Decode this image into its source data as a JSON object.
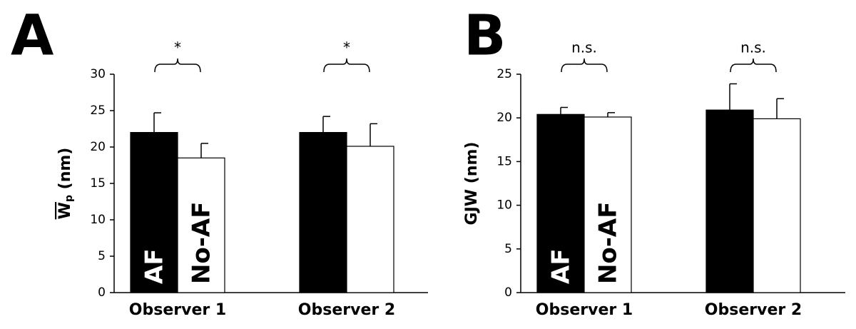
{
  "chart_data": [
    {
      "type": "bar",
      "panel": "A",
      "ylabel": [
        "W",
        "p",
        " (nm)"
      ],
      "categories": [
        "Observer 1",
        "Observer 2"
      ],
      "series": [
        {
          "name": "AF",
          "color": "#000000",
          "values": [
            22,
            22
          ],
          "errors": [
            2.7,
            2.2
          ]
        },
        {
          "name": "No-AF",
          "color": "#ffffff",
          "values": [
            18.5,
            20.1
          ],
          "errors": [
            2.0,
            3.1
          ]
        }
      ],
      "annotations": [
        "*",
        "*"
      ],
      "ylim": [
        0,
        30
      ],
      "yticks": [
        0,
        5,
        10,
        15,
        20,
        25,
        30
      ]
    },
    {
      "type": "bar",
      "panel": "B",
      "ylabel": [
        "GJW (nm)"
      ],
      "categories": [
        "Observer 1",
        "Observer 2"
      ],
      "series": [
        {
          "name": "AF",
          "color": "#000000",
          "values": [
            20.4,
            20.9
          ],
          "errors": [
            0.8,
            3.0
          ]
        },
        {
          "name": "No-AF",
          "color": "#ffffff",
          "values": [
            20.1,
            19.9
          ],
          "errors": [
            0.5,
            2.3
          ]
        }
      ],
      "annotations": [
        "n.s.",
        "n.s."
      ],
      "ylim": [
        0,
        25
      ],
      "yticks": [
        0,
        5,
        10,
        15,
        20,
        25
      ]
    }
  ]
}
